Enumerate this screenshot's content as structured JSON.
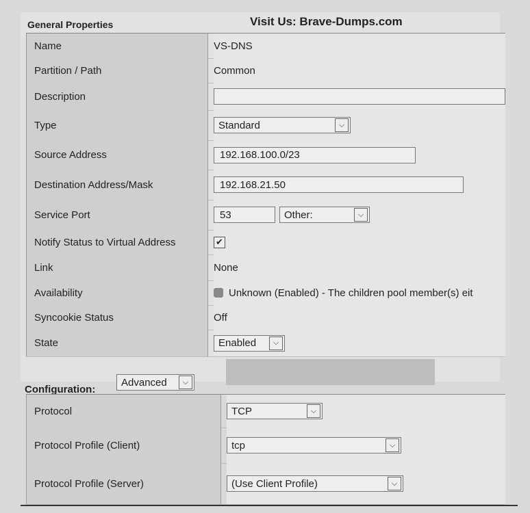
{
  "header": {
    "section_title": "General Properties",
    "banner": "Visit Us: Brave-Dumps.com"
  },
  "general": {
    "name": {
      "label": "Name",
      "value": "VS-DNS"
    },
    "partition": {
      "label": "Partition / Path",
      "value": "Common"
    },
    "description": {
      "label": "Description",
      "value": ""
    },
    "type": {
      "label": "Type",
      "value": "Standard"
    },
    "source": {
      "label": "Source Address",
      "value": "192.168.100.0/23"
    },
    "destination": {
      "label": "Destination Address/Mask",
      "value": "192.168.21.50"
    },
    "port": {
      "label": "Service Port",
      "value": "53",
      "protocol_select": "Other:"
    },
    "notify": {
      "label": "Notify Status to Virtual Address",
      "checked": true
    },
    "link": {
      "label": "Link",
      "value": "None"
    },
    "availability": {
      "label": "Availability",
      "value": "Unknown (Enabled) - The children pool member(s) eit",
      "icon": "status-gray-square"
    },
    "syncookie": {
      "label": "Syncookie Status",
      "value": "Off"
    },
    "state": {
      "label": "State",
      "value": "Enabled"
    }
  },
  "configuration": {
    "label": "Configuration:",
    "mode": "Advanced",
    "protocol": {
      "label": "Protocol",
      "value": "TCP"
    },
    "client_profile": {
      "label": "Protocol Profile (Client)",
      "value": "tcp"
    },
    "server_profile": {
      "label": "Protocol Profile (Server)",
      "value": "(Use Client Profile)"
    }
  }
}
